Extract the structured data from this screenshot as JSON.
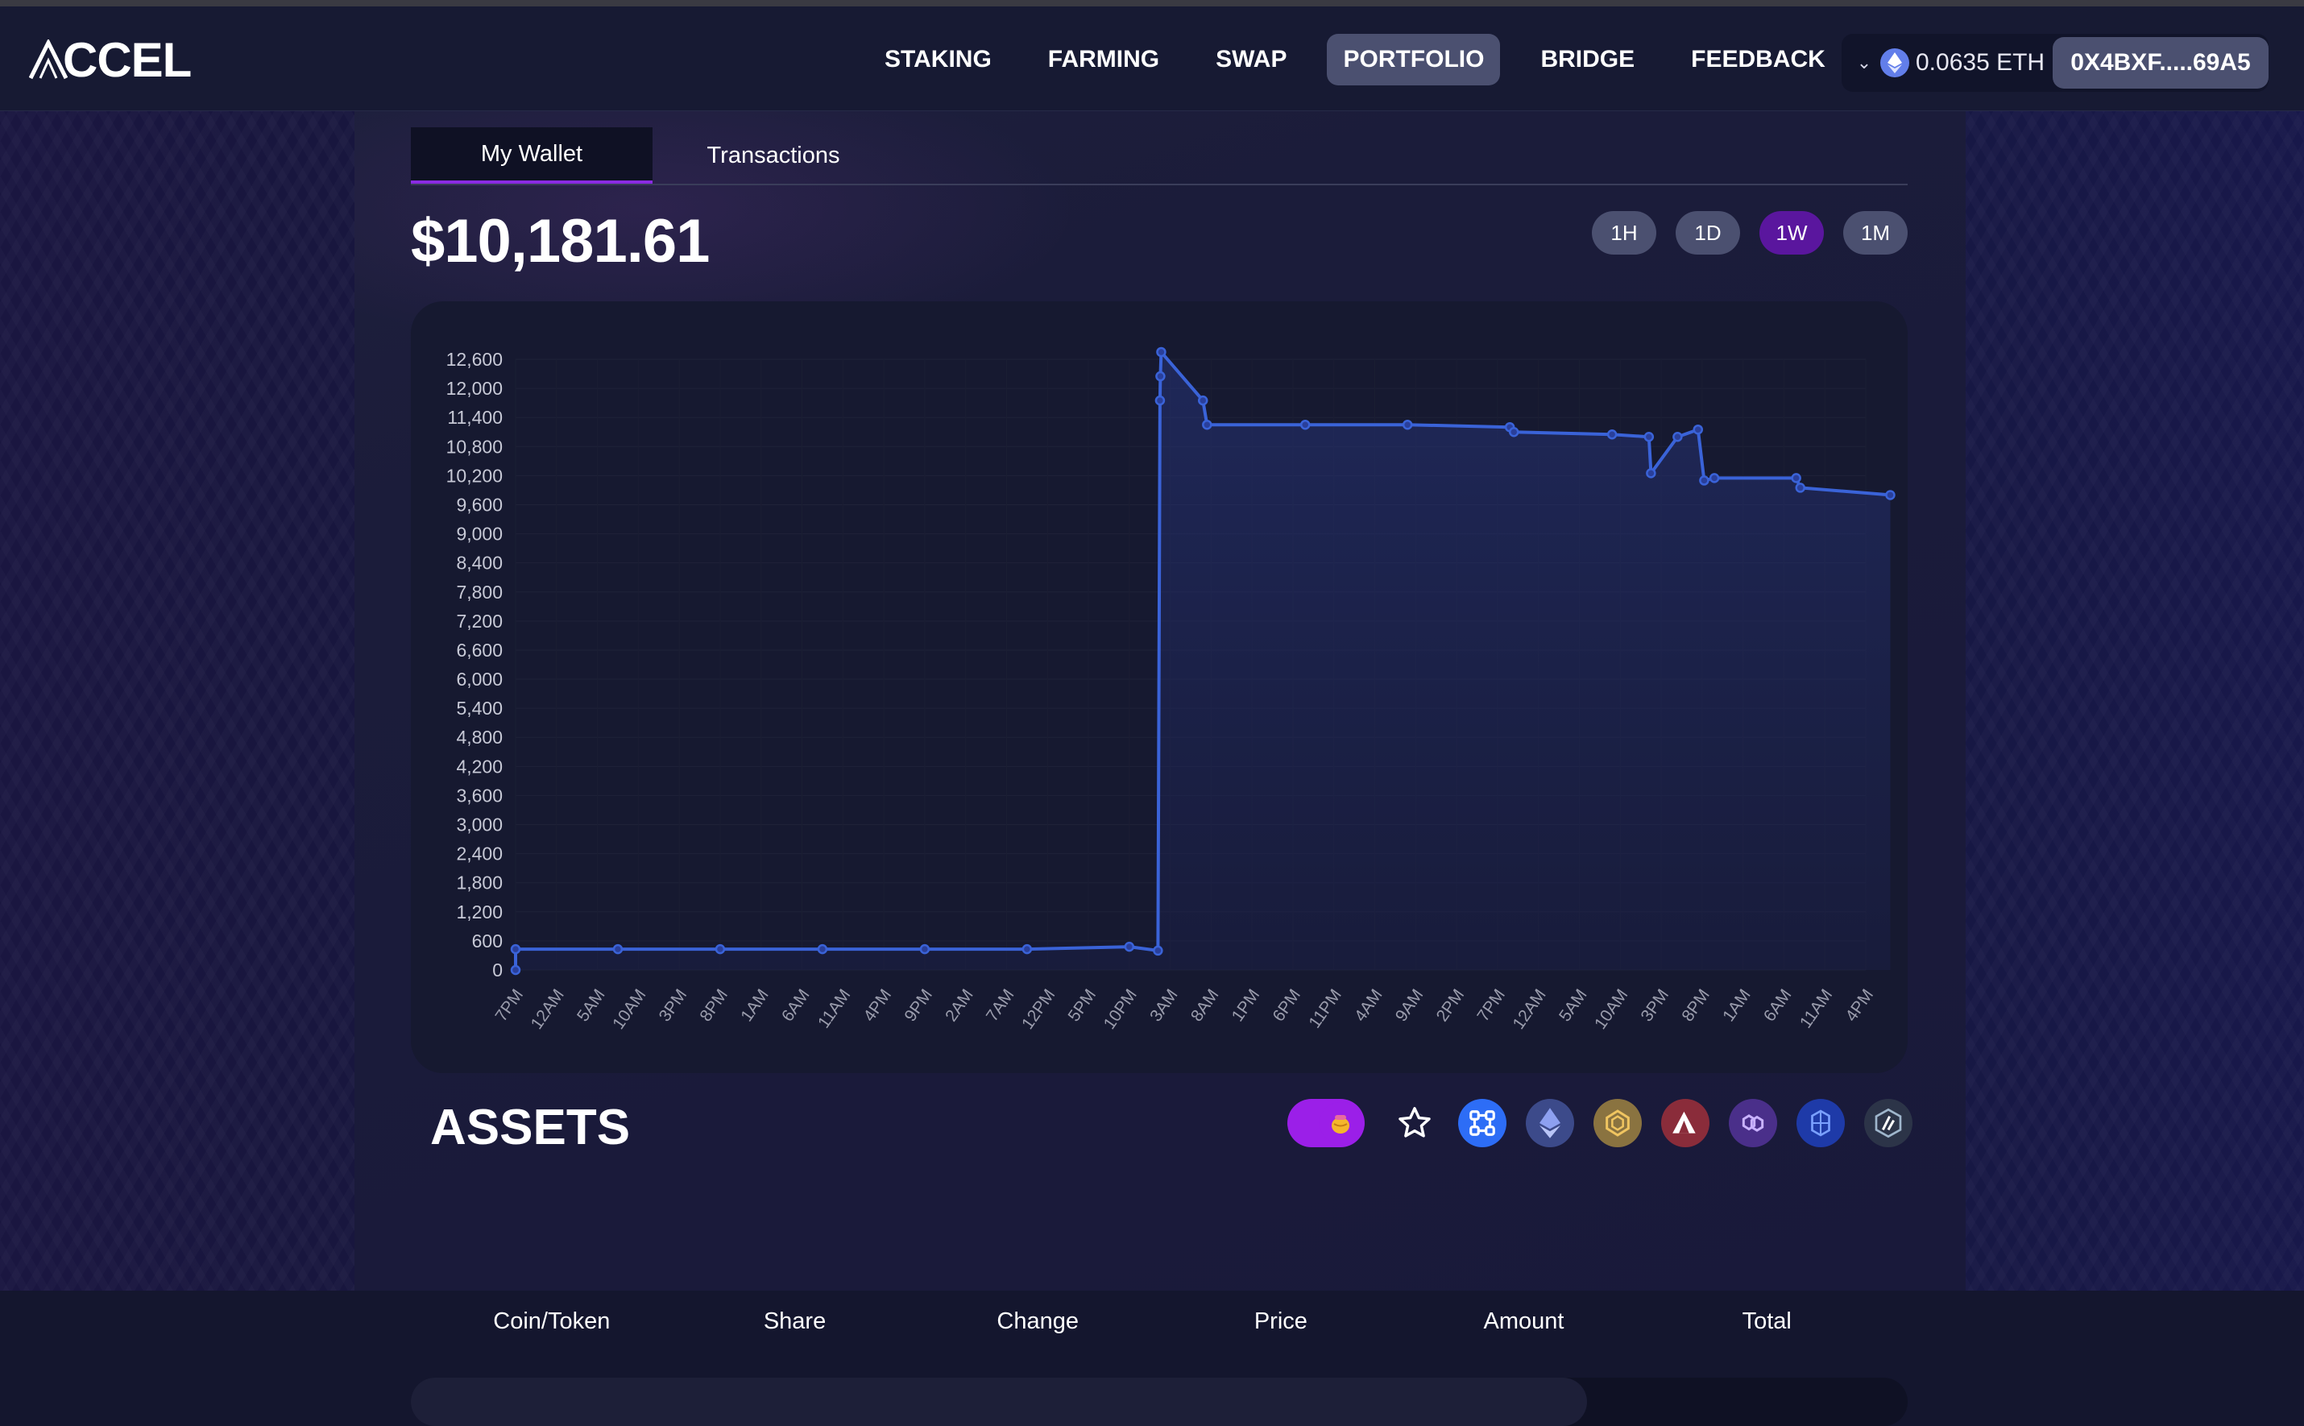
{
  "app": {
    "logo_text": "CCEL"
  },
  "nav": {
    "items": [
      {
        "label": "STAKING",
        "active": false
      },
      {
        "label": "FARMING",
        "active": false
      },
      {
        "label": "SWAP",
        "active": false
      },
      {
        "label": "PORTFOLIO",
        "active": true
      },
      {
        "label": "BRIDGE",
        "active": false
      },
      {
        "label": "FEEDBACK",
        "active": false
      }
    ]
  },
  "wallet": {
    "balance": "0.0635 ETH",
    "address": "0X4BXF.....69A5"
  },
  "tabs": [
    {
      "label": "My Wallet",
      "active": true
    },
    {
      "label": "Transactions",
      "active": false
    }
  ],
  "portfolio": {
    "total_value": "$10,181.61"
  },
  "ranges": [
    {
      "label": "1H",
      "active": false
    },
    {
      "label": "1D",
      "active": false
    },
    {
      "label": "1W",
      "active": true
    },
    {
      "label": "1M",
      "active": false
    }
  ],
  "chart_data": {
    "type": "line",
    "title": "",
    "xlabel": "",
    "ylabel": "",
    "ylim": [
      0,
      12600
    ],
    "y_ticks": [
      0,
      600,
      1200,
      1800,
      2400,
      3000,
      3600,
      4200,
      4800,
      5400,
      6000,
      6600,
      7200,
      7800,
      8400,
      9000,
      9600,
      10200,
      10800,
      11400,
      12000,
      12600
    ],
    "x_tick_labels": [
      "7PM",
      "12AM",
      "5AM",
      "10AM",
      "3PM",
      "8PM",
      "1AM",
      "6AM",
      "11AM",
      "4PM",
      "9PM",
      "2AM",
      "7AM",
      "12PM",
      "5PM",
      "10PM",
      "3AM",
      "8AM",
      "1PM",
      "6PM",
      "11PM",
      "4AM",
      "9AM",
      "2PM",
      "7PM",
      "12AM",
      "5AM",
      "10AM",
      "3PM",
      "8PM",
      "1AM",
      "6AM",
      "11AM",
      "4PM"
    ],
    "series": [
      {
        "color": "#3a63d8",
        "points": [
          [
            0,
            0
          ],
          [
            0,
            430
          ],
          [
            2.5,
            430
          ],
          [
            5,
            430
          ],
          [
            7.5,
            430
          ],
          [
            10,
            430
          ],
          [
            12.5,
            430
          ],
          [
            15,
            480
          ],
          [
            15.7,
            400
          ],
          [
            15.75,
            11750
          ],
          [
            15.76,
            12250
          ],
          [
            15.78,
            12750
          ],
          [
            16.8,
            11750
          ],
          [
            16.9,
            11250
          ],
          [
            19.3,
            11250
          ],
          [
            21.8,
            11250
          ],
          [
            24.3,
            11200
          ],
          [
            24.4,
            11100
          ],
          [
            26.8,
            11050
          ],
          [
            27.7,
            11000
          ],
          [
            27.75,
            10250
          ],
          [
            28.4,
            11000
          ],
          [
            28.9,
            11150
          ],
          [
            29.05,
            10100
          ],
          [
            29.3,
            10150
          ],
          [
            31.3,
            10150
          ],
          [
            31.4,
            9950
          ],
          [
            33.6,
            9800
          ]
        ]
      }
    ],
    "grid": true,
    "legend": "none"
  },
  "assets": {
    "title": "ASSETS",
    "filters": [
      {
        "icon": "favorites-star-icon"
      },
      {
        "icon": "all-chains-icon",
        "color": "#2d6df6"
      },
      {
        "icon": "ethereum-icon",
        "color": "#3c4a8a"
      },
      {
        "icon": "bnb-icon",
        "color": "#8a7340"
      },
      {
        "icon": "avalanche-icon",
        "color": "#8a2c3a"
      },
      {
        "icon": "polygon-icon",
        "color": "#4a2f8a"
      },
      {
        "icon": "fantom-icon",
        "color": "#1e3aa8"
      },
      {
        "icon": "arbitrum-icon",
        "color": "#2c3448"
      }
    ],
    "columns": [
      "Coin/Token",
      "Share",
      "Change",
      "Price",
      "Amount",
      "Total"
    ]
  }
}
